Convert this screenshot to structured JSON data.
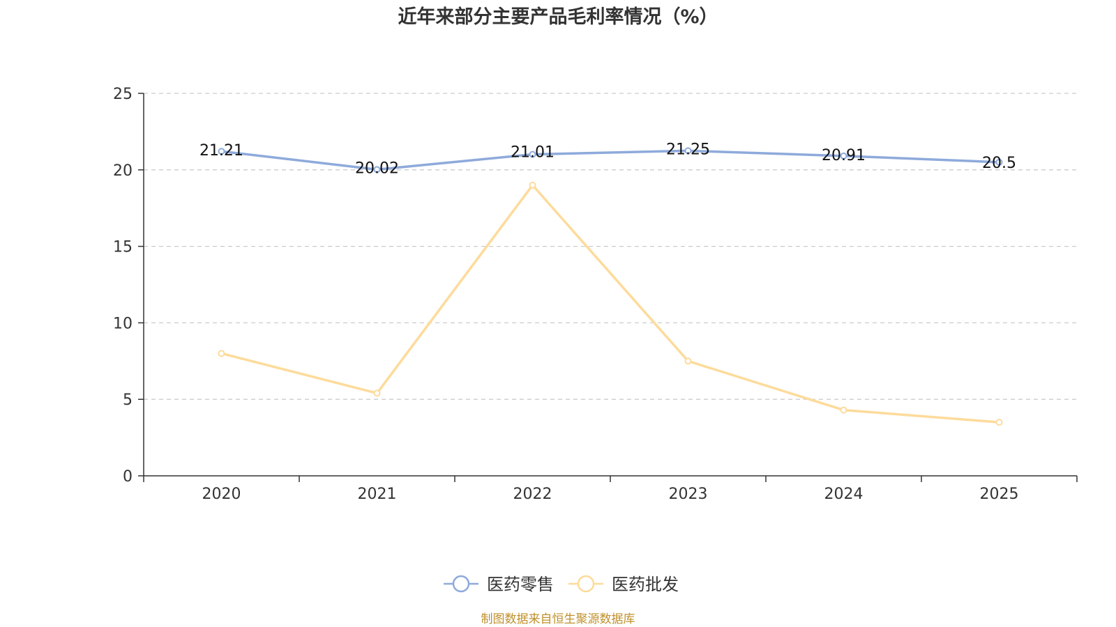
{
  "chart_data": {
    "type": "line",
    "title": "近年来部分主要产品毛利率情况（%）",
    "categories": [
      "2020",
      "2021",
      "2022",
      "2023",
      "2024",
      "2025"
    ],
    "series": [
      {
        "name": "医药零售",
        "values": [
          21.21,
          20.02,
          21.01,
          21.25,
          20.91,
          20.5
        ],
        "labels": [
          "21.21",
          "20.02",
          "21.01",
          "21.25",
          "20.91",
          "20.5"
        ],
        "color": "#8eaadb",
        "show_labels": true
      },
      {
        "name": "医药批发",
        "values": [
          8.0,
          5.4,
          19.0,
          7.5,
          4.3,
          3.5
        ],
        "color": "#fddb9b",
        "show_labels": false
      }
    ],
    "y_ticks": [
      "0",
      "5",
      "10",
      "15",
      "20",
      "25"
    ],
    "ylim": [
      0,
      25
    ],
    "xlabel": "",
    "ylabel": "",
    "grid": true,
    "legend": "bottom-center"
  },
  "source": {
    "text": "制图数据来自恒生聚源数据库",
    "color": "#c0902b"
  }
}
